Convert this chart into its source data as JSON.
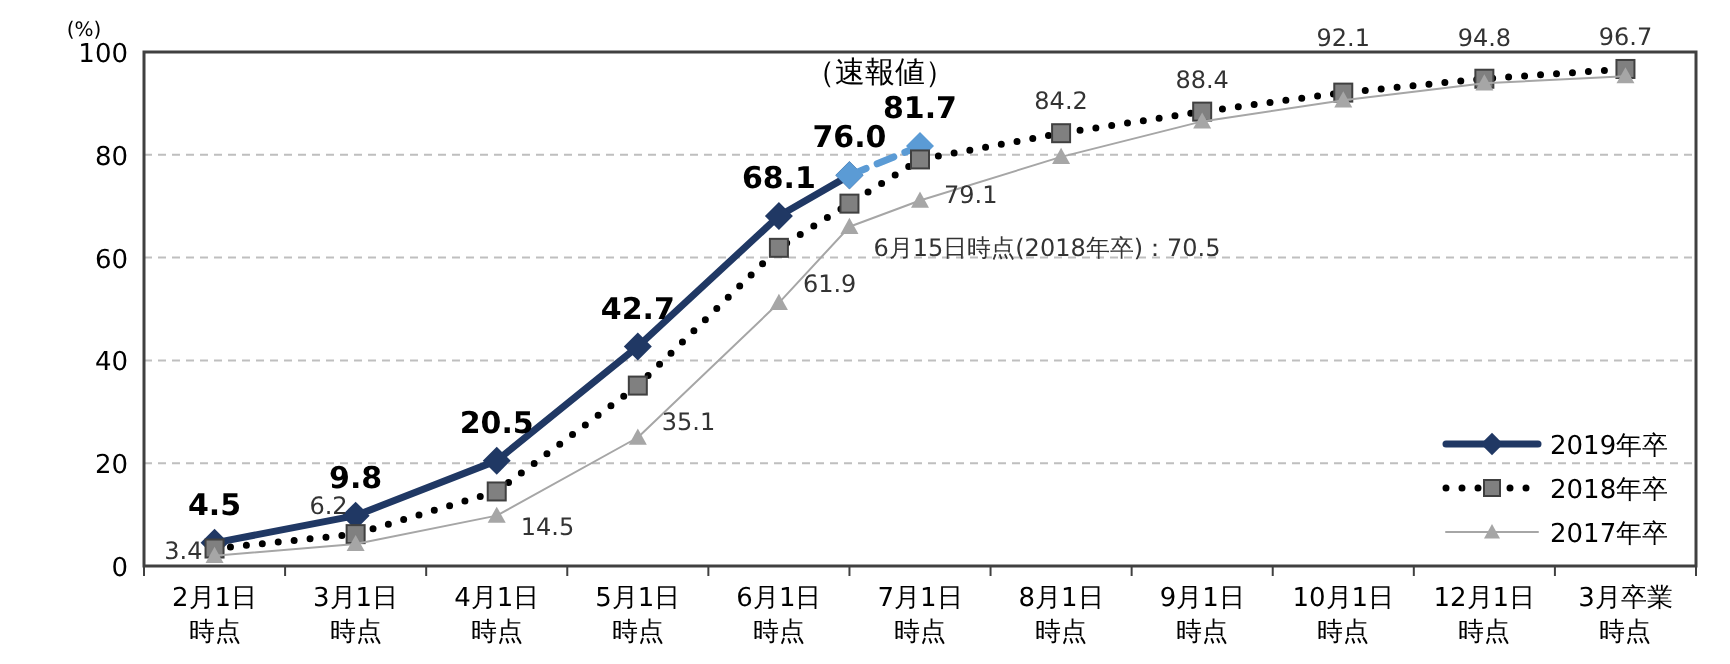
{
  "chart_data": {
    "type": "line",
    "ylabel": "(%)",
    "categories": [
      "2月1日時点",
      null,
      "3月1日時点",
      null,
      "4月1日時点",
      null,
      "5月1日時点",
      null,
      "6月1日時点",
      null,
      "7月1日時点",
      null,
      "8月1日時点",
      null,
      "9月1日時点",
      null,
      "10月1日時点",
      null,
      "12月1日時点",
      null,
      "3月卒業時点"
    ],
    "ylim": [
      0,
      100
    ],
    "yticks": [
      0,
      20,
      40,
      60,
      80,
      100
    ],
    "grid": "y",
    "legend": "bottom right",
    "series": [
      {
        "name": "2019年卒",
        "color": "#203864",
        "marker": "diamond",
        "line_style": "solid",
        "values": [
          4.5,
          null,
          9.8,
          null,
          20.5,
          null,
          42.7,
          null,
          68.1,
          76.0,
          null,
          null,
          null,
          null,
          null,
          null,
          null,
          null,
          null,
          null,
          null
        ],
        "value_labels": [
          "4.5",
          null,
          "9.8",
          null,
          "20.5",
          null,
          "42.7",
          null,
          "68.1",
          "76.0",
          null,
          null,
          null,
          null,
          null,
          null,
          null,
          null,
          null,
          null,
          null
        ]
      },
      {
        "color": "#5b9bd5",
        "marker": "diamond",
        "line_style": "dashed",
        "values": [
          null,
          null,
          null,
          null,
          null,
          null,
          null,
          null,
          null,
          76.0,
          81.7,
          null,
          null,
          null,
          null,
          null,
          null,
          null,
          null,
          null,
          null
        ],
        "value_labels": [
          null,
          null,
          null,
          null,
          null,
          null,
          null,
          null,
          null,
          null,
          "81.7",
          null,
          null,
          null,
          null,
          null,
          null,
          null,
          null,
          null,
          null
        ]
      },
      {
        "name": "2018年卒",
        "color": "#000000",
        "marker": "square",
        "line_style": "dotted",
        "values": [
          3.4,
          null,
          6.2,
          null,
          14.5,
          null,
          35.1,
          null,
          61.9,
          70.5,
          79.1,
          null,
          84.2,
          null,
          88.4,
          null,
          92.1,
          null,
          94.8,
          null,
          96.7
        ],
        "value_labels": [
          "3.4",
          null,
          "6.2",
          null,
          "14.5",
          null,
          "35.1",
          null,
          "61.9",
          null,
          "79.1",
          null,
          "84.2",
          null,
          "88.4",
          null,
          "92.1",
          null,
          "94.8",
          null,
          "96.7"
        ]
      },
      {
        "name": "2017年卒",
        "color": "#a6a6a6",
        "marker": "triangle",
        "line_style": "solid",
        "values": [
          2.0,
          null,
          4.3,
          null,
          9.8,
          null,
          25.0,
          null,
          51.2,
          66.0,
          71.1,
          null,
          79.6,
          null,
          86.5,
          null,
          90.6,
          null,
          93.9,
          null,
          95.3
        ]
      }
    ],
    "annotations": [
      {
        "text": "（速報値）",
        "x": "7月1日時点",
        "y": 81.7
      },
      "6月15日時点(2018年卒)：70.5"
    ]
  }
}
